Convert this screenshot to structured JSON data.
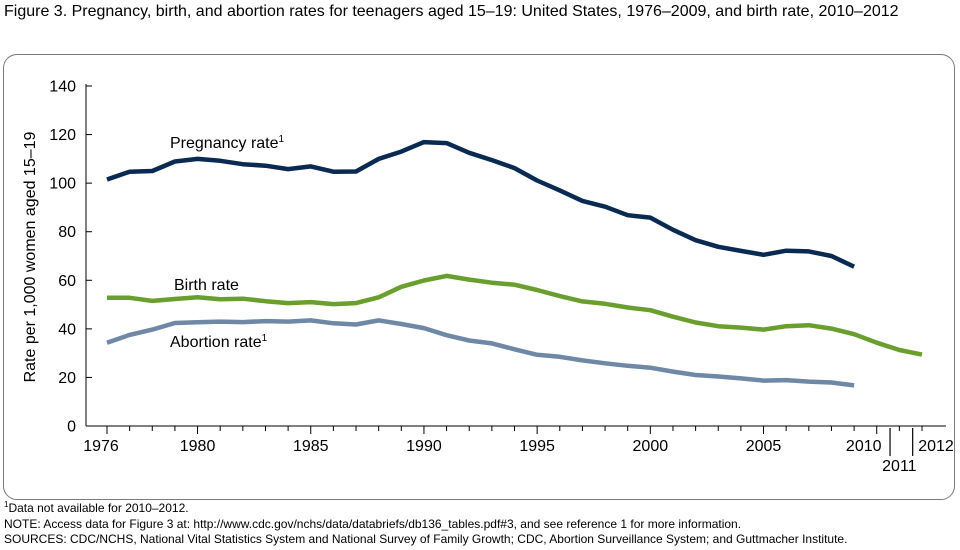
{
  "figure_title": "Figure 3. Pregnancy, birth, and abortion rates for teenagers aged 15–19: United States, 1976–2009, and birth rate, 2010–2012",
  "footnotes": {
    "note1_sup": "1",
    "note1_text": "Data not available for 2010–2012.",
    "note2": "NOTE: Access data for Figure 3 at: http://www.cdc.gov/nchs/data/databriefs/db136_tables.pdf#3, and see reference 1 for more information.",
    "sources": "SOURCES: CDC/NCHS, National Vital Statistics System and National Survey of Family Growth; CDC, Abortion Surveillance System; and Guttmacher Institute."
  },
  "chart_data": {
    "type": "line",
    "title": "Pregnancy, birth, and abortion rates for teenagers aged 15–19: United States, 1976–2009, and birth rate, 2010–2012",
    "xlabel": "",
    "ylabel": "Rate per 1,000 women aged 15–19",
    "ylim": [
      0,
      140
    ],
    "xlim": [
      1976,
      2012
    ],
    "y_ticks": [
      0,
      20,
      40,
      60,
      80,
      100,
      120,
      140
    ],
    "x_tick_labels": [
      "1976",
      "1980",
      "1985",
      "1990",
      "1995",
      "2000",
      "2005",
      "2010",
      "2011",
      "2012"
    ],
    "series": [
      {
        "name": "Pregnancy rate",
        "label": "Pregnancy rate",
        "label_sup": "1",
        "color": "#0b2a52",
        "x": [
          1976,
          1977,
          1978,
          1979,
          1980,
          1981,
          1982,
          1983,
          1984,
          1985,
          1986,
          1987,
          1988,
          1989,
          1990,
          1991,
          1992,
          1993,
          1994,
          1995,
          1996,
          1997,
          1998,
          1999,
          2000,
          2001,
          2002,
          2003,
          2004,
          2005,
          2006,
          2007,
          2008,
          2009
        ],
        "values": [
          101.5,
          104.7,
          105.0,
          108.9,
          110.0,
          109.2,
          107.8,
          107.2,
          105.8,
          106.9,
          104.7,
          104.8,
          110.0,
          113.0,
          116.9,
          116.5,
          112.5,
          109.5,
          106.2,
          101.1,
          97.0,
          92.7,
          90.3,
          86.8,
          85.8,
          80.8,
          76.5,
          73.8,
          72.1,
          70.5,
          72.2,
          71.9,
          70.0,
          65.6
        ]
      },
      {
        "name": "Birth rate",
        "label": "Birth rate",
        "label_sup": "",
        "color": "#6a9e2f",
        "x": [
          1976,
          1977,
          1978,
          1979,
          1980,
          1981,
          1982,
          1983,
          1984,
          1985,
          1986,
          1987,
          1988,
          1989,
          1990,
          1991,
          1992,
          1993,
          1994,
          1995,
          1996,
          1997,
          1998,
          1999,
          2000,
          2001,
          2002,
          2003,
          2004,
          2005,
          2006,
          2007,
          2008,
          2009,
          2010,
          2011,
          2012
        ],
        "values": [
          52.8,
          52.8,
          51.5,
          52.3,
          53.0,
          52.2,
          52.4,
          51.4,
          50.6,
          51.0,
          50.2,
          50.6,
          53.0,
          57.3,
          59.9,
          61.8,
          60.3,
          59.0,
          58.2,
          56.0,
          53.5,
          51.3,
          50.3,
          48.8,
          47.7,
          45.0,
          42.6,
          41.1,
          40.5,
          39.7,
          41.1,
          41.5,
          40.1,
          37.8,
          34.3,
          31.3,
          29.4
        ]
      },
      {
        "name": "Abortion rate",
        "label": "Abortion rate",
        "label_sup": "1",
        "color": "#6f88a6",
        "x": [
          1976,
          1977,
          1978,
          1979,
          1980,
          1981,
          1982,
          1983,
          1984,
          1985,
          1986,
          1987,
          1988,
          1989,
          1990,
          1991,
          1992,
          1993,
          1994,
          1995,
          1996,
          1997,
          1998,
          1999,
          2000,
          2001,
          2002,
          2003,
          2004,
          2005,
          2006,
          2007,
          2008,
          2009
        ],
        "values": [
          34.3,
          37.5,
          39.7,
          42.4,
          42.7,
          43.0,
          42.8,
          43.2,
          43.0,
          43.5,
          42.3,
          41.8,
          43.5,
          42.0,
          40.3,
          37.4,
          35.2,
          34.0,
          31.6,
          29.3,
          28.5,
          27.0,
          25.8,
          24.8,
          24.0,
          22.4,
          21.0,
          20.4,
          19.6,
          18.7,
          18.9,
          18.3,
          17.9,
          16.7
        ]
      }
    ],
    "legend": "inline-labels"
  }
}
